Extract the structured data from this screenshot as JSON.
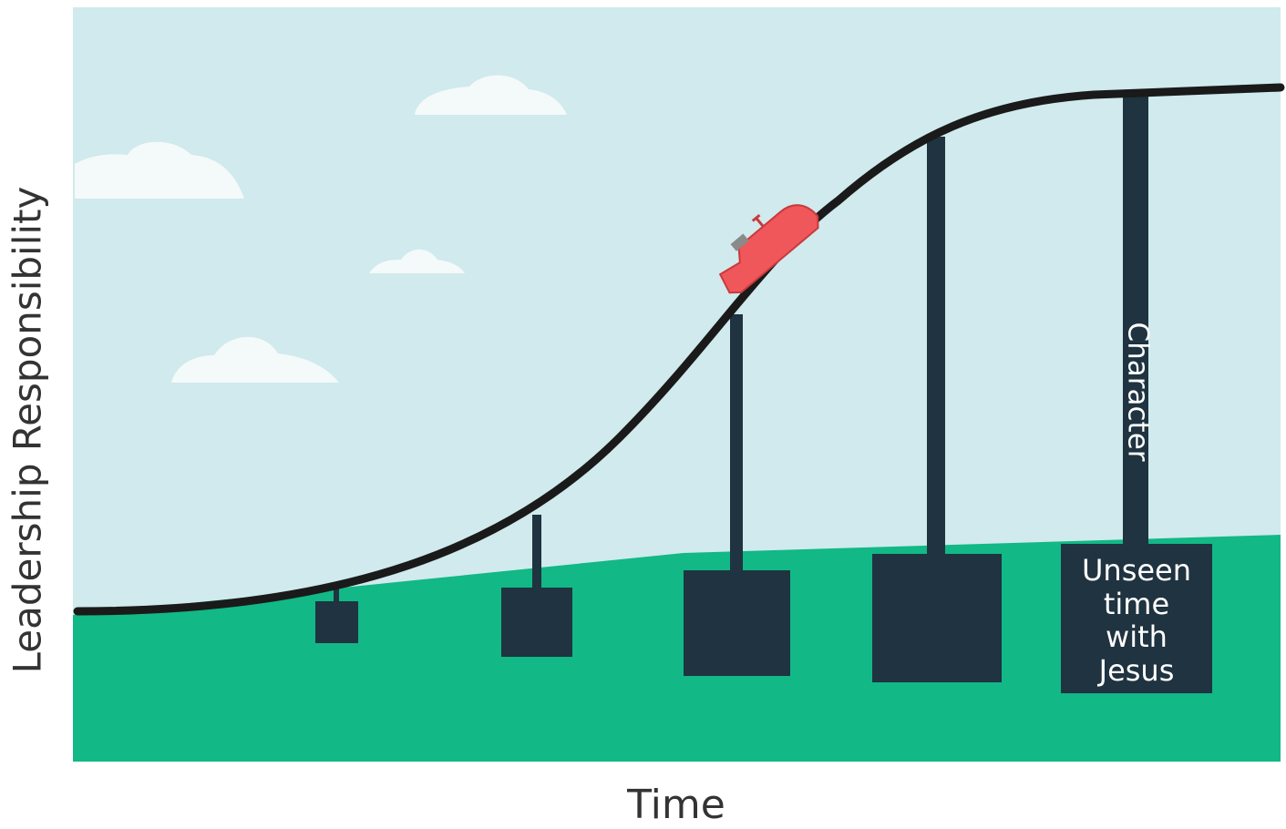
{
  "y_axis_label": "Leadership Responsibility",
  "x_axis_label": "Time",
  "pillar_label": "Character",
  "footing_label_lines": [
    "Unseen",
    "time",
    "with",
    "Jesus"
  ]
}
